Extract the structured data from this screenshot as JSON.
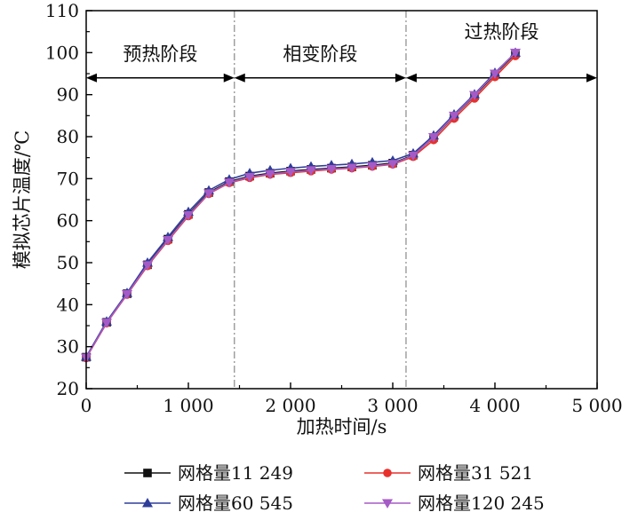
{
  "chart_data": {
    "type": "line",
    "xlabel": "加热时间/s",
    "ylabel": "模拟芯片温度/℃",
    "xlim": [
      0,
      5000
    ],
    "ylim": [
      20,
      110
    ],
    "x_ticks": [
      {
        "value": 0,
        "label": "0"
      },
      {
        "value": 1000,
        "label": "1 000"
      },
      {
        "value": 2000,
        "label": "2 000"
      },
      {
        "value": 3000,
        "label": "3 000"
      },
      {
        "value": 4000,
        "label": "4 000"
      },
      {
        "value": 5000,
        "label": "5 000"
      }
    ],
    "y_ticks": [
      {
        "value": 20,
        "label": "20"
      },
      {
        "value": 30,
        "label": "30"
      },
      {
        "value": 40,
        "label": "40"
      },
      {
        "value": 50,
        "label": "50"
      },
      {
        "value": 60,
        "label": "60"
      },
      {
        "value": 70,
        "label": "70"
      },
      {
        "value": 80,
        "label": "80"
      },
      {
        "value": 90,
        "label": "90"
      },
      {
        "value": 100,
        "label": "100"
      },
      {
        "value": 110,
        "label": "110"
      }
    ],
    "grid": false,
    "legend_position": "bottom",
    "phase_boundaries": [
      1450,
      3130
    ],
    "phase_arrow_y": 94,
    "phases": [
      {
        "label": "预热阶段",
        "from": 0,
        "to": 1450
      },
      {
        "label": "相变阶段",
        "from": 1450,
        "to": 3130
      },
      {
        "label": "过热阶段",
        "from": 3130,
        "to": 5000
      }
    ],
    "x": [
      0,
      200,
      400,
      600,
      800,
      1000,
      1200,
      1400,
      1600,
      1800,
      2000,
      2200,
      2400,
      2600,
      2800,
      3000,
      3200,
      3400,
      3600,
      3800,
      4000,
      4200
    ],
    "series": [
      {
        "name": "网格量11 249",
        "color": "#111111",
        "marker": "square",
        "values": [
          27.5,
          35.8,
          42.6,
          49.5,
          55.6,
          61.5,
          66.7,
          69.3,
          70.6,
          71.3,
          71.8,
          72.2,
          72.5,
          72.8,
          73.2,
          73.7,
          75.6,
          79.8,
          84.9,
          89.7,
          94.8,
          99.8
        ]
      },
      {
        "name": "网格量31 521",
        "color": "#e8302b",
        "marker": "circle",
        "values": [
          27.3,
          35.6,
          42.4,
          49.2,
          55.2,
          61.1,
          66.4,
          69.0,
          70.2,
          71.0,
          71.4,
          71.8,
          72.2,
          72.5,
          72.9,
          73.4,
          75.2,
          79.2,
          84.3,
          89.1,
          94.2,
          99.2
        ]
      },
      {
        "name": "网格量60 545",
        "color": "#2f3d9a",
        "marker": "triangle-up",
        "values": [
          27.6,
          36.0,
          42.8,
          50.0,
          56.1,
          62.1,
          67.2,
          69.8,
          71.3,
          72.0,
          72.5,
          72.9,
          73.2,
          73.5,
          73.9,
          74.3,
          76.0,
          80.3,
          85.3,
          90.1,
          95.2,
          100.0
        ]
      },
      {
        "name": "网格量120 245",
        "color": "#a55bc6",
        "marker": "triangle-down",
        "values": [
          27.4,
          35.7,
          42.5,
          49.4,
          55.4,
          61.3,
          66.5,
          69.1,
          70.4,
          71.1,
          71.6,
          72.0,
          72.3,
          72.6,
          73.0,
          73.5,
          75.5,
          79.9,
          85.0,
          89.9,
          95.0,
          100.0
        ]
      }
    ]
  }
}
